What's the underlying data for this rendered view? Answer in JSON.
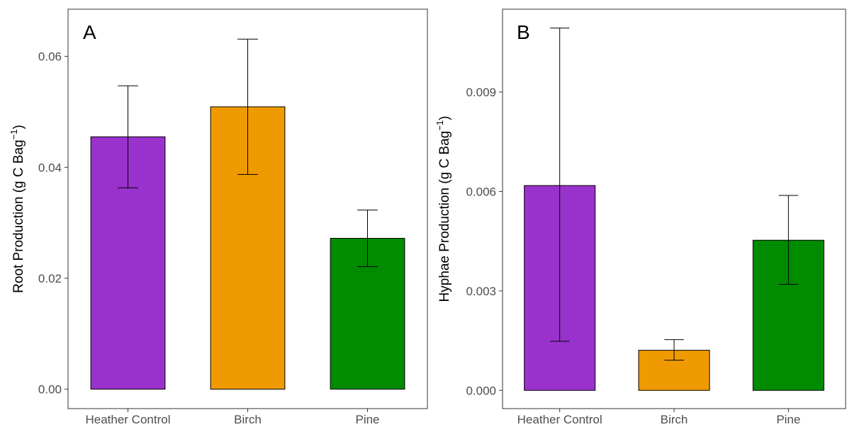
{
  "chart_data": [
    {
      "type": "bar",
      "panel_label": "A",
      "categories": [
        "Heather Control",
        "Birch",
        "Pine"
      ],
      "values": [
        0.0455,
        0.0509,
        0.0272
      ],
      "error_upper": [
        0.0547,
        0.0631,
        0.0323
      ],
      "error_lower": [
        0.0363,
        0.0387,
        0.0221
      ],
      "colors": [
        "#9932CC",
        "#EE9A00",
        "#008B00"
      ],
      "ylabel": "Root Production (g C Bag",
      "ylabel_superscript": "−1",
      "ylabel_close": ")",
      "ylim": [
        -0.0035,
        0.0685
      ],
      "yticks": [
        0.0,
        0.02,
        0.04,
        0.06
      ],
      "ytick_labels": [
        "0.00",
        "0.02",
        "0.04",
        "0.06"
      ],
      "grid": false,
      "legend": "none"
    },
    {
      "type": "bar",
      "panel_label": "B",
      "categories": [
        "Heather Control",
        "Birch",
        "Pine"
      ],
      "values": [
        0.00618,
        0.00121,
        0.00453
      ],
      "error_upper": [
        0.01093,
        0.00153,
        0.00588
      ],
      "error_lower": [
        0.00148,
        0.00091,
        0.0032
      ],
      "colors": [
        "#9932CC",
        "#EE9A00",
        "#008B00"
      ],
      "ylabel": "Hyphae Production (g C Bag",
      "ylabel_superscript": "−1",
      "ylabel_close": ")",
      "ylim": [
        -0.00055,
        0.0115
      ],
      "yticks": [
        0.0,
        0.003,
        0.006,
        0.009
      ],
      "ytick_labels": [
        "0.000",
        "0.003",
        "0.006",
        "0.009"
      ],
      "grid": false,
      "legend": "none"
    }
  ]
}
